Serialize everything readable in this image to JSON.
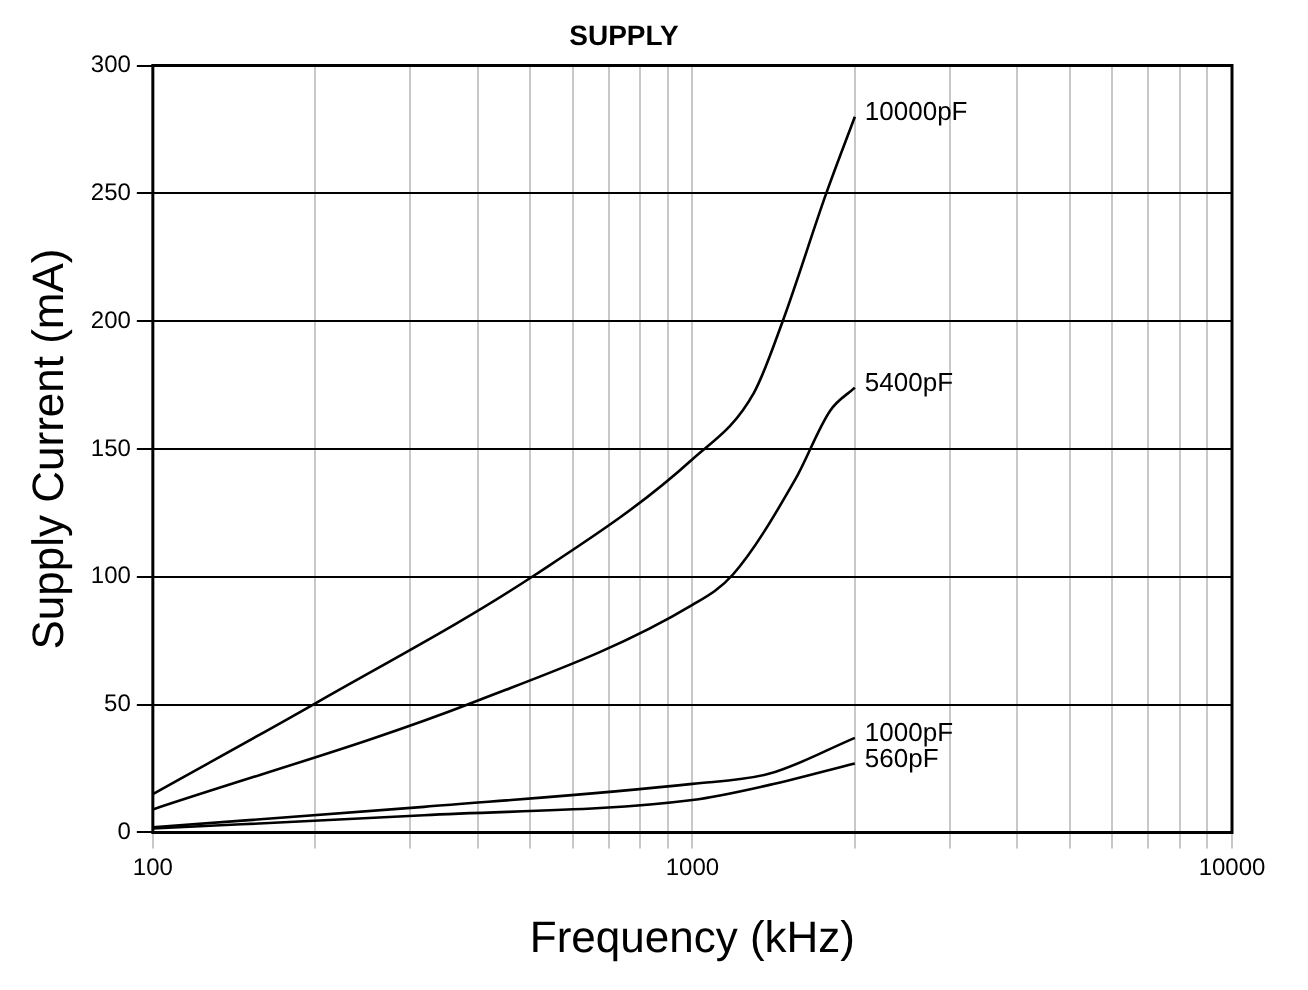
{
  "chart_data": {
    "type": "line",
    "title": "SUPPLY",
    "xlabel": "Frequency (kHz)",
    "ylabel": "Supply Current (mA)",
    "log": "x",
    "grid": true,
    "marker": "none",
    "line_style": "solid",
    "legend": false,
    "xlim": [
      100,
      10000
    ],
    "ylim": [
      0,
      300
    ],
    "xticks": [
      100,
      {
        "value": 200,
        "label": null
      },
      {
        "value": 300,
        "label": null
      },
      {
        "value": 400,
        "label": null
      },
      {
        "value": 500,
        "label": null
      },
      {
        "value": 600,
        "label": null
      },
      {
        "value": 700,
        "label": null
      },
      {
        "value": 800,
        "label": null
      },
      {
        "value": 900,
        "label": null
      },
      1000,
      {
        "value": 2000,
        "label": null
      },
      {
        "value": 3000,
        "label": null
      },
      {
        "value": 4000,
        "label": null
      },
      {
        "value": 5000,
        "label": null
      },
      {
        "value": 6000,
        "label": null
      },
      {
        "value": 7000,
        "label": null
      },
      {
        "value": 8000,
        "label": null
      },
      {
        "value": 9000,
        "label": null
      },
      10000
    ],
    "yticks": [
      0,
      50,
      100,
      150,
      200,
      250,
      300
    ],
    "series": [
      {
        "name": "10000pF",
        "color": "#000000",
        "x": [
          100,
          202,
          513,
          1000,
          1300,
          1470,
          1770,
          2000
        ],
        "values": [
          15,
          51,
          101,
          146,
          172,
          200,
          250,
          280
        ]
      },
      {
        "name": "5400pF",
        "color": "#000000",
        "x": [
          100,
          394,
          1000,
          1190,
          1550,
          1800,
          2000
        ],
        "values": [
          9,
          51,
          89,
          101,
          138,
          165,
          174
        ]
      },
      {
        "name": "1000pF",
        "color": "#000000",
        "x": [
          100,
          318,
          1000,
          1390,
          2000
        ],
        "values": [
          2,
          10,
          19,
          23,
          37
        ]
      },
      {
        "name": "560pF",
        "color": "#000000",
        "x": [
          100,
          318,
          1000,
          1390,
          2000
        ],
        "values": [
          1.5,
          6.7,
          12.7,
          18.6,
          27
        ]
      }
    ]
  }
}
